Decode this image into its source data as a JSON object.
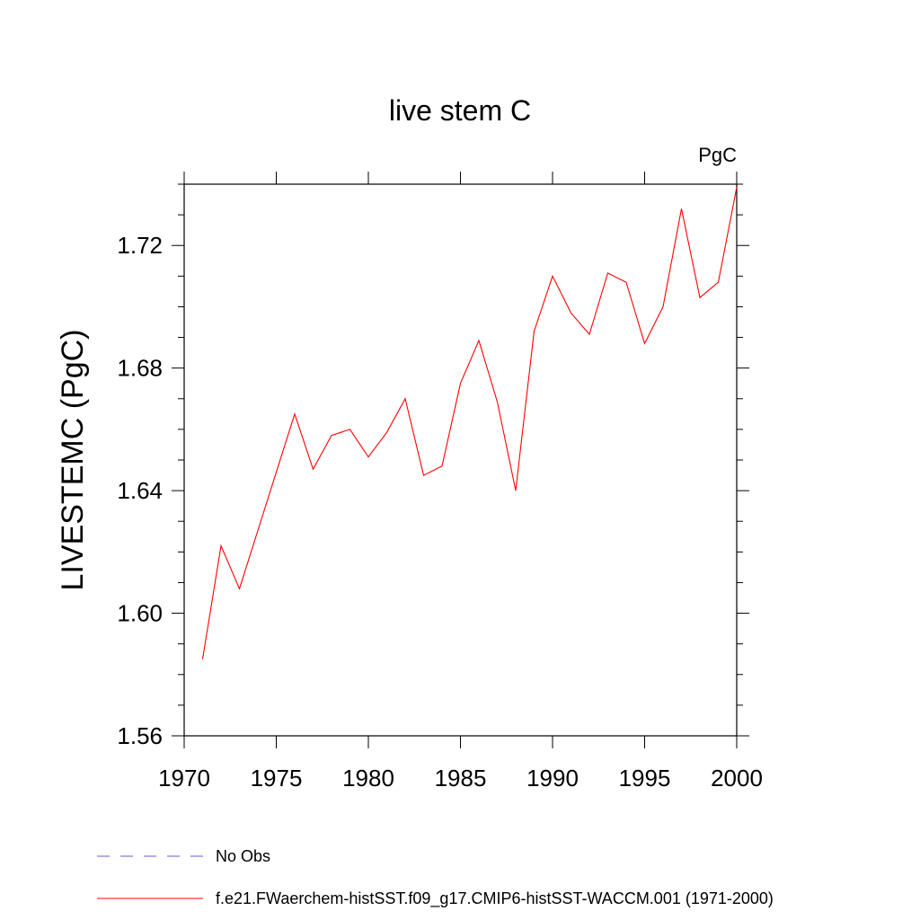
{
  "chart_data": {
    "type": "line",
    "title": "live stem C",
    "units": "PgC",
    "xlabel": "",
    "ylabel": "LIVESTEMC  (PgC)",
    "xlim": [
      1970,
      2000
    ],
    "ylim": [
      1.56,
      1.74
    ],
    "x_ticks": [
      1970,
      1975,
      1980,
      1985,
      1990,
      1995,
      2000
    ],
    "y_ticks": [
      1.56,
      1.6,
      1.64,
      1.68,
      1.72
    ],
    "y_tick_labels": [
      "1.56",
      "1.60",
      "1.64",
      "1.68",
      "1.72"
    ],
    "grid": false,
    "legend_position": "bottom",
    "series": [
      {
        "name": "f.e21.FWaerchem-histSST.f09_g17.CMIP6-histSST-WACCM.001 (1971-2000)",
        "color": "#ff0000",
        "style": "solid",
        "x": [
          1971,
          1972,
          1973,
          1974,
          1975,
          1976,
          1977,
          1978,
          1979,
          1980,
          1981,
          1982,
          1983,
          1984,
          1985,
          1986,
          1987,
          1988,
          1989,
          1990,
          1991,
          1992,
          1993,
          1994,
          1995,
          1996,
          1997,
          1998,
          1999,
          2000
        ],
        "values": [
          1.585,
          1.622,
          1.608,
          1.627,
          1.646,
          1.665,
          1.647,
          1.658,
          1.66,
          1.651,
          1.659,
          1.67,
          1.645,
          1.648,
          1.675,
          1.689,
          1.669,
          1.64,
          1.692,
          1.71,
          1.698,
          1.691,
          1.711,
          1.708,
          1.688,
          1.7,
          1.732,
          1.703,
          1.708,
          1.739
        ]
      }
    ],
    "legend": [
      {
        "label": "No Obs",
        "color": "#6a5acd",
        "style": "dashed"
      },
      {
        "label": "f.e21.FWaerchem-histSST.f09_g17.CMIP6-histSST-WACCM.001 (1971-2000)",
        "color": "#ff0000",
        "style": "solid"
      }
    ]
  }
}
